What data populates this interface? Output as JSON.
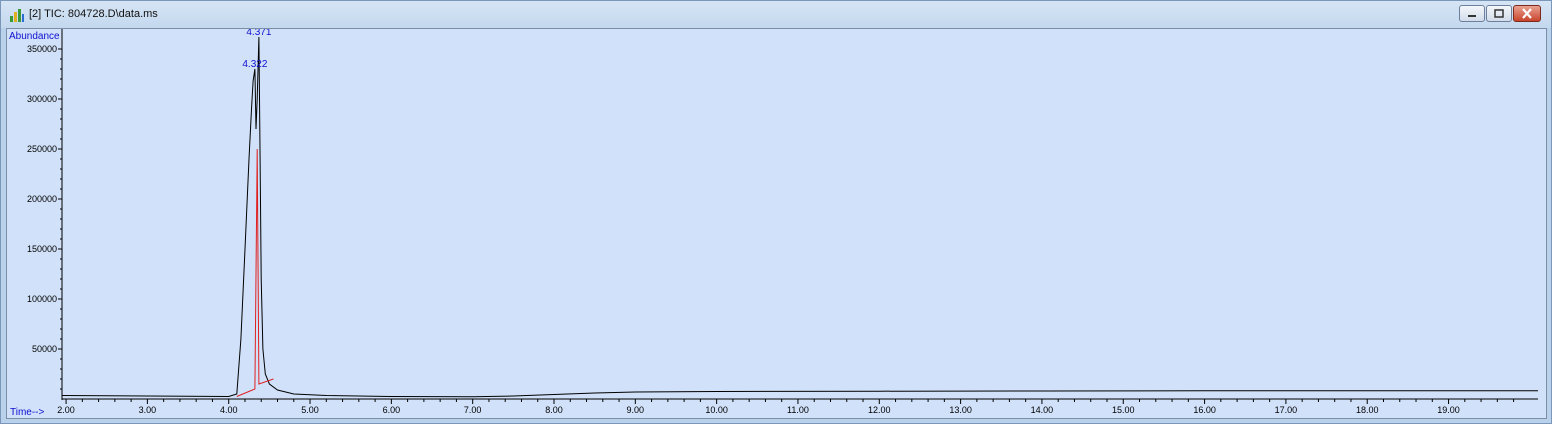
{
  "window": {
    "title": "[2] TIC: 804728.D\\data.ms",
    "app_icon": "chromatogram-app-icon",
    "buttons": {
      "minimize": "minimize-icon",
      "maximize": "maximize-icon",
      "close": "close-icon"
    }
  },
  "chart_data": {
    "type": "line",
    "ylabel": "Abundance",
    "xlabel": "Time-->",
    "xlim": [
      1.95,
      20.1
    ],
    "ylim": [
      0,
      370000
    ],
    "x_ticks": [
      "2.00",
      "3.00",
      "4.00",
      "5.00",
      "6.00",
      "7.00",
      "8.00",
      "9.00",
      "10.00",
      "11.00",
      "12.00",
      "13.00",
      "14.00",
      "15.00",
      "16.00",
      "17.00",
      "18.00",
      "19.00"
    ],
    "y_ticks": [
      "50000",
      "100000",
      "150000",
      "200000",
      "250000",
      "300000",
      "350000"
    ],
    "peak_labels": [
      {
        "text": "4.371",
        "x": 4.371,
        "y": 362000
      },
      {
        "text": "4.322",
        "x": 4.322,
        "y": 330000
      }
    ],
    "series": [
      {
        "color": "#000000",
        "x": [
          1.95,
          2.5,
          3.5,
          4.0,
          4.1,
          4.15,
          4.2,
          4.25,
          4.28,
          4.3,
          4.322,
          4.335,
          4.35,
          4.371,
          4.385,
          4.4,
          4.42,
          4.45,
          4.5,
          4.6,
          4.8,
          5.2,
          6.0,
          7.0,
          7.5,
          8.0,
          8.5,
          9.0,
          10.0,
          12.0,
          14.0,
          16.0,
          18.0,
          20.1
        ],
        "y": [
          3500,
          3200,
          2800,
          2500,
          5000,
          60000,
          150000,
          240000,
          290000,
          318000,
          330000,
          270000,
          300000,
          362000,
          250000,
          120000,
          50000,
          25000,
          15000,
          9000,
          5000,
          3500,
          2500,
          2300,
          3000,
          4500,
          6000,
          7000,
          7500,
          7800,
          8000,
          8200,
          8200,
          8300
        ]
      }
    ],
    "integration": {
      "color": "#e02020",
      "x": [
        4.1,
        4.322,
        4.35,
        4.371,
        4.55
      ],
      "y": [
        2500,
        10000,
        250000,
        15000,
        20000
      ]
    }
  }
}
